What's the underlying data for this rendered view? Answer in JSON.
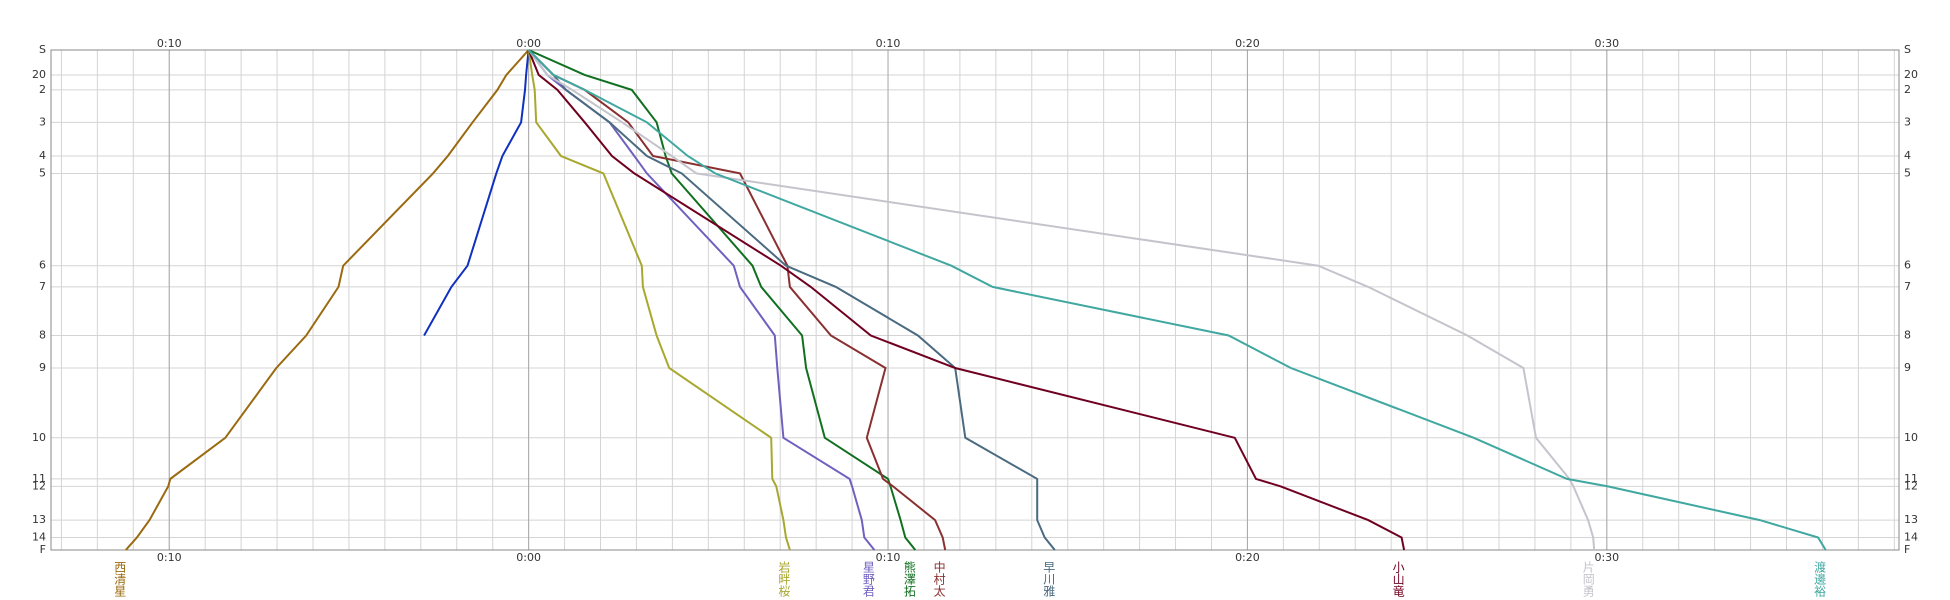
{
  "chart_data": {
    "type": "line",
    "xlim": [
      -13.29,
      38.13
    ],
    "xticks": [
      {
        "value": -10,
        "label": "0:10"
      },
      {
        "value": 0,
        "label": "0:00"
      },
      {
        "value": 10,
        "label": "0:10"
      },
      {
        "value": 20,
        "label": "0:20"
      },
      {
        "value": 30,
        "label": "0:30"
      }
    ],
    "xminor": [
      -13,
      -12,
      -11,
      -10,
      -9,
      -8,
      -7,
      -6,
      -5,
      -4,
      -3,
      -2,
      -1,
      0,
      1,
      2,
      3,
      4,
      5,
      6,
      7,
      8,
      9,
      10,
      11,
      12,
      13,
      14,
      15,
      16,
      17,
      18,
      19,
      20,
      21,
      22,
      23,
      24,
      25,
      26,
      27,
      28,
      29,
      30,
      31,
      32,
      33,
      34,
      35,
      36,
      37,
      38
    ],
    "ylim": [
      0,
      401
    ],
    "yticks": [
      {
        "value": 0,
        "label": "S"
      },
      20,
      {
        "value": 32,
        "label": "2"
      },
      {
        "value": 58,
        "label": "3"
      },
      {
        "value": 85,
        "label": "4"
      },
      {
        "value": 99,
        "label": "5"
      },
      {
        "value": 173,
        "label": "6"
      },
      {
        "value": 190,
        "label": "7"
      },
      {
        "value": 229,
        "label": "8"
      },
      {
        "value": 255,
        "label": "9"
      },
      {
        "value": 311,
        "label": "10"
      },
      {
        "value": 344,
        "label": "11"
      },
      {
        "value": 350,
        "label": "12"
      },
      {
        "value": 377,
        "label": "13"
      },
      {
        "value": 391,
        "label": "14"
      },
      {
        "value": 401,
        "label": "F"
      }
    ],
    "grid": true,
    "series": [
      {
        "name": "西清星",
        "color": "#9a6a10",
        "values": [
          0,
          -0.62,
          -0.87,
          -1.56,
          -2.25,
          -2.66,
          -5.16,
          -5.29,
          -6.19,
          -7.02,
          -8.44,
          -9.97,
          -10.03,
          -10.55,
          -10.9,
          -11.21
        ]
      },
      {
        "name": null,
        "color": "#1030c0",
        "values": [
          0,
          -0.07,
          -0.1,
          -0.21,
          -0.73,
          -0.9,
          -1.7,
          -2.15,
          -2.91,
          null,
          null,
          null,
          null,
          null,
          null,
          null
        ]
      },
      {
        "name": "岩畔桜",
        "color": "#a8a830",
        "values": [
          0,
          0.1,
          0.17,
          0.21,
          0.9,
          2.08,
          3.15,
          3.18,
          3.56,
          3.91,
          6.75,
          6.78,
          6.89,
          7.09,
          7.16,
          7.27
        ]
      },
      {
        "name": "星野君",
        "color": "#7060c0",
        "values": [
          0,
          0.52,
          1.04,
          2.25,
          2.94,
          3.29,
          5.71,
          5.88,
          6.85,
          6.92,
          7.09,
          8.93,
          9.0,
          9.27,
          9.34,
          9.62
        ]
      },
      {
        "name": "熊澤拓",
        "color": "#107020",
        "values": [
          0,
          1.56,
          2.87,
          3.56,
          3.81,
          3.98,
          6.23,
          6.47,
          7.61,
          7.72,
          8.24,
          10.0,
          10.07,
          10.35,
          10.48,
          10.76
        ]
      },
      {
        "name": "中村太",
        "color": "#8a3030",
        "values": [
          0,
          0.69,
          1.56,
          2.77,
          3.46,
          5.88,
          7.2,
          7.27,
          8.41,
          9.93,
          9.41,
          9.86,
          10.14,
          11.31,
          11.52,
          11.59
        ]
      },
      {
        "name": "早川雅",
        "color": "#4a6a80",
        "values": [
          0,
          0.69,
          1.04,
          2.25,
          3.29,
          4.26,
          7.16,
          8.55,
          10.83,
          11.87,
          12.15,
          14.15,
          14.15,
          14.15,
          14.36,
          14.64
        ]
      },
      {
        "name": "小山竜",
        "color": "#700020",
        "values": [
          0,
          0.28,
          0.8,
          1.56,
          2.32,
          2.94,
          7.02,
          7.85,
          9.52,
          11.87,
          19.65,
          20.24,
          20.93,
          23.36,
          24.29,
          24.36
        ]
      },
      {
        "name": "片岡勇",
        "color": "#c4c4cc",
        "values": [
          0,
          0.52,
          1.21,
          2.6,
          3.98,
          4.67,
          21.97,
          23.36,
          26.12,
          27.68,
          28.03,
          28.96,
          29.07,
          29.48,
          29.62,
          29.65
        ]
      },
      {
        "name": "渡邊裕",
        "color": "#40a8a0",
        "values": [
          0,
          0.69,
          1.56,
          3.29,
          4.43,
          5.19,
          11.76,
          12.91,
          19.48,
          21.21,
          26.3,
          28.89,
          30.03,
          34.26,
          35.88,
          36.09
        ]
      }
    ]
  }
}
